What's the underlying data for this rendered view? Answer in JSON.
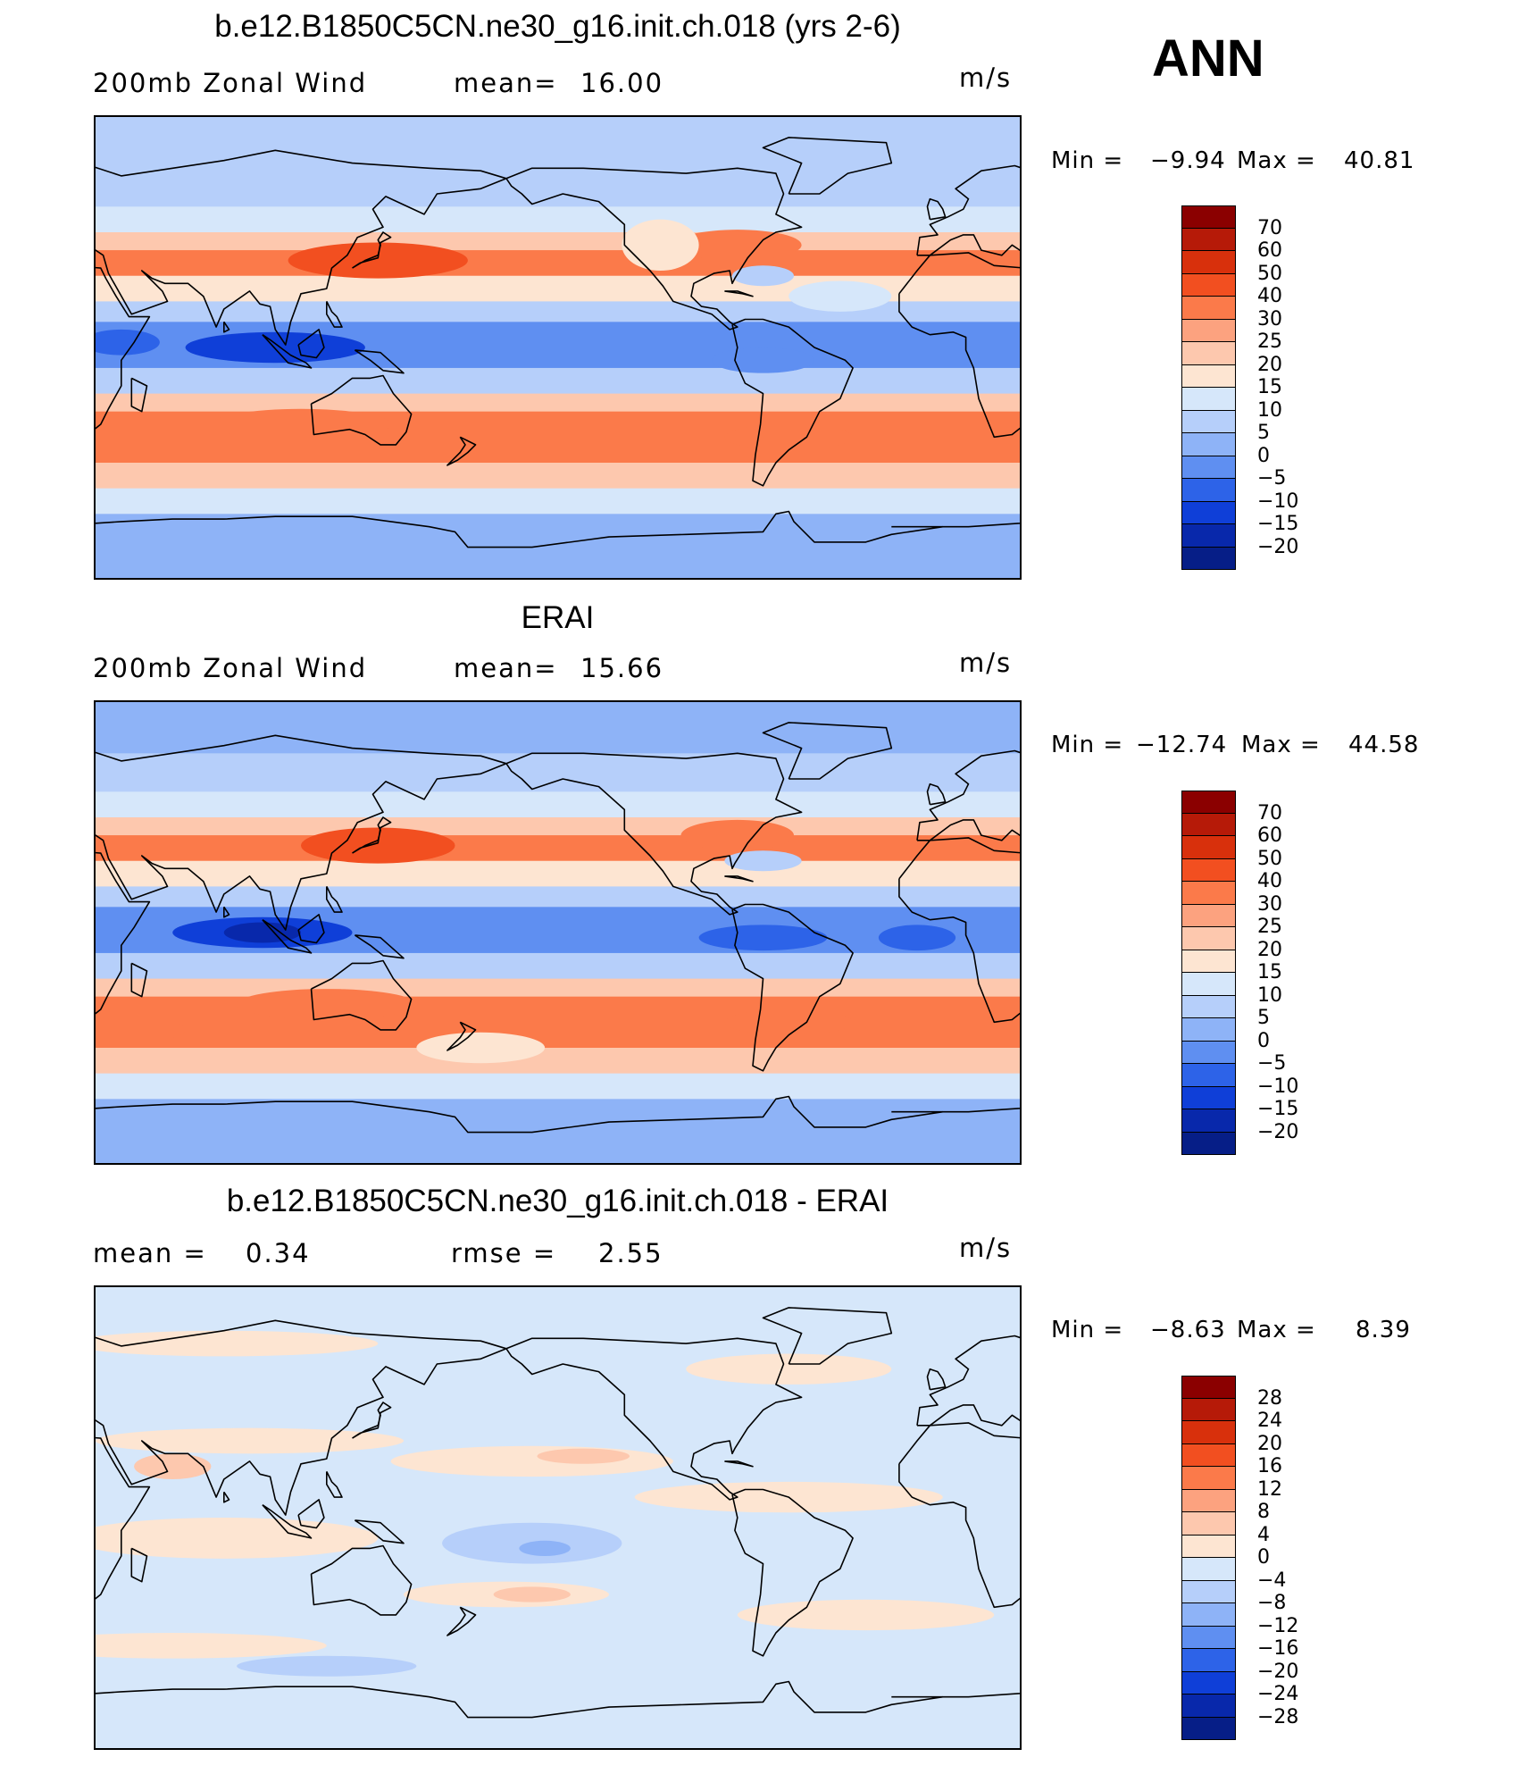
{
  "header": {
    "season": "ANN"
  },
  "panels": [
    {
      "title": "b.e12.B1850C5CN.ne30_g16.init.ch.018 (yrs 2-6)",
      "left_label": "200mb Zonal Wind",
      "stat_label": "mean=",
      "stat_value": "16.00",
      "stat2_label": "",
      "stat2_value": "",
      "units": "m/s",
      "min_label": "Min =",
      "min_value": "−9.94",
      "max_label": "Max =",
      "max_value": "40.81",
      "colorbar": {
        "labels": [
          "70",
          "60",
          "50",
          "40",
          "30",
          "25",
          "20",
          "15",
          "10",
          "5",
          "0",
          "−5",
          "−10",
          "−15",
          "−20"
        ],
        "colors": [
          "#8b0000",
          "#b61a08",
          "#d8300c",
          "#f24f20",
          "#fb7a4a",
          "#fca27f",
          "#fdc8ae",
          "#fde5d2",
          "#d6e7fa",
          "#b6cffa",
          "#8eb3f7",
          "#5f8ff1",
          "#2d63e8",
          "#0f3fd8",
          "#0828ab",
          "#061e87"
        ]
      },
      "map": {
        "bands": [
          {
            "lat_top": 90,
            "lat_bottom": 70,
            "value": 5
          },
          {
            "lat_top": 70,
            "lat_bottom": 55,
            "value": 8
          },
          {
            "lat_top": 55,
            "lat_bottom": 45,
            "value": 13
          },
          {
            "lat_top": 45,
            "lat_bottom": 38,
            "value": 22
          },
          {
            "lat_top": 38,
            "lat_bottom": 28,
            "value": 32
          },
          {
            "lat_top": 28,
            "lat_bottom": 18,
            "value": 18
          },
          {
            "lat_top": 18,
            "lat_bottom": 10,
            "value": 8
          },
          {
            "lat_top": 10,
            "lat_bottom": -8,
            "value": -4
          },
          {
            "lat_top": -8,
            "lat_bottom": -18,
            "value": 8
          },
          {
            "lat_top": -18,
            "lat_bottom": -25,
            "value": 22
          },
          {
            "lat_top": -25,
            "lat_bottom": -45,
            "value": 34
          },
          {
            "lat_top": -45,
            "lat_bottom": -55,
            "value": 22
          },
          {
            "lat_top": -55,
            "lat_bottom": -65,
            "value": 12
          },
          {
            "lat_top": -65,
            "lat_bottom": -90,
            "value": 3
          }
        ],
        "features": [
          {
            "lon": 140,
            "lat": 34,
            "rx": 35,
            "ry": 7,
            "value": 45
          },
          {
            "lon": 100,
            "lat": 0,
            "rx": 35,
            "ry": 6,
            "value": -12
          },
          {
            "lon": 40,
            "lat": 2,
            "rx": 15,
            "ry": 5,
            "value": -8
          },
          {
            "lon": 280,
            "lat": 40,
            "rx": 25,
            "ry": 6,
            "value": 35
          },
          {
            "lon": 250,
            "lat": 40,
            "rx": 15,
            "ry": 10,
            "value": 17
          },
          {
            "lon": 290,
            "lat": 28,
            "rx": 12,
            "ry": 4,
            "value": 9
          },
          {
            "lon": 320,
            "lat": 20,
            "rx": 20,
            "ry": 6,
            "value": 12
          },
          {
            "lon": 290,
            "lat": -5,
            "rx": 20,
            "ry": 5,
            "value": -2
          },
          {
            "lon": 110,
            "lat": -30,
            "rx": 35,
            "ry": 6,
            "value": 38
          },
          {
            "lon": 300,
            "lat": -35,
            "rx": 25,
            "ry": 5,
            "value": 38
          }
        ]
      }
    },
    {
      "title": "ERAI",
      "left_label": "200mb Zonal Wind",
      "stat_label": "mean=",
      "stat_value": "15.66",
      "stat2_label": "",
      "stat2_value": "",
      "units": "m/s",
      "min_label": "Min =",
      "min_value": "−12.74",
      "max_label": "Max =",
      "max_value": "44.58",
      "colorbar": {
        "labels": [
          "70",
          "60",
          "50",
          "40",
          "30",
          "25",
          "20",
          "15",
          "10",
          "5",
          "0",
          "−5",
          "−10",
          "−15",
          "−20"
        ],
        "colors": [
          "#8b0000",
          "#b61a08",
          "#d8300c",
          "#f24f20",
          "#fb7a4a",
          "#fca27f",
          "#fdc8ae",
          "#fde5d2",
          "#d6e7fa",
          "#b6cffa",
          "#8eb3f7",
          "#5f8ff1",
          "#2d63e8",
          "#0f3fd8",
          "#0828ab",
          "#061e87"
        ]
      },
      "map": {
        "bands": [
          {
            "lat_top": 90,
            "lat_bottom": 70,
            "value": 4
          },
          {
            "lat_top": 70,
            "lat_bottom": 55,
            "value": 8
          },
          {
            "lat_top": 55,
            "lat_bottom": 45,
            "value": 13
          },
          {
            "lat_top": 45,
            "lat_bottom": 38,
            "value": 22
          },
          {
            "lat_top": 38,
            "lat_bottom": 28,
            "value": 30
          },
          {
            "lat_top": 28,
            "lat_bottom": 18,
            "value": 17
          },
          {
            "lat_top": 18,
            "lat_bottom": 10,
            "value": 6
          },
          {
            "lat_top": 10,
            "lat_bottom": -8,
            "value": -3
          },
          {
            "lat_top": -8,
            "lat_bottom": -18,
            "value": 9
          },
          {
            "lat_top": -18,
            "lat_bottom": -25,
            "value": 22
          },
          {
            "lat_top": -25,
            "lat_bottom": -45,
            "value": 33
          },
          {
            "lat_top": -45,
            "lat_bottom": -55,
            "value": 22
          },
          {
            "lat_top": -55,
            "lat_bottom": -65,
            "value": 11
          },
          {
            "lat_top": -65,
            "lat_bottom": -90,
            "value": 2
          }
        ],
        "features": [
          {
            "lon": 140,
            "lat": 34,
            "rx": 30,
            "ry": 7,
            "value": 48
          },
          {
            "lon": 95,
            "lat": 0,
            "rx": 35,
            "ry": 6,
            "value": -15
          },
          {
            "lon": 95,
            "lat": 0,
            "rx": 15,
            "ry": 4,
            "value": -18
          },
          {
            "lon": 280,
            "lat": 38,
            "rx": 22,
            "ry": 6,
            "value": 35
          },
          {
            "lon": 290,
            "lat": 28,
            "rx": 15,
            "ry": 4,
            "value": 8
          },
          {
            "lon": 290,
            "lat": -2,
            "rx": 25,
            "ry": 5,
            "value": -8
          },
          {
            "lon": 350,
            "lat": -2,
            "rx": 15,
            "ry": 5,
            "value": -8
          },
          {
            "lon": 120,
            "lat": -28,
            "rx": 35,
            "ry": 6,
            "value": 38
          },
          {
            "lon": 30,
            "lat": -38,
            "rx": 35,
            "ry": 6,
            "value": 38
          },
          {
            "lon": 300,
            "lat": -35,
            "rx": 25,
            "ry": 5,
            "value": 38
          },
          {
            "lon": 180,
            "lat": -45,
            "rx": 25,
            "ry": 6,
            "value": 18
          }
        ]
      }
    },
    {
      "title": "b.e12.B1850C5CN.ne30_g16.init.ch.018 - ERAI",
      "left_label": "mean =",
      "stat_label": "",
      "stat_value": "0.34",
      "stat2_label": "rmse =",
      "stat2_value": "2.55",
      "units": "m/s",
      "min_label": "Min =",
      "min_value": "−8.63",
      "max_label": "Max =",
      "max_value": "8.39",
      "colorbar": {
        "labels": [
          "28",
          "24",
          "20",
          "16",
          "12",
          "8",
          "4",
          "0",
          "−4",
          "−8",
          "−12",
          "−16",
          "−20",
          "−24",
          "−28"
        ],
        "colors": [
          "#8b0000",
          "#b61a08",
          "#d8300c",
          "#f24f20",
          "#fb7a4a",
          "#fca27f",
          "#fdc8ae",
          "#fde5d2",
          "#d6e7fa",
          "#b6cffa",
          "#8eb3f7",
          "#5f8ff1",
          "#2d63e8",
          "#0f3fd8",
          "#0828ab",
          "#061e87"
        ]
      },
      "map": {
        "bands": [
          {
            "lat_top": 90,
            "lat_bottom": -90,
            "value": -2
          }
        ],
        "features": [
          {
            "lon": 80,
            "lat": 68,
            "rx": 60,
            "ry": 5,
            "value": 2
          },
          {
            "lon": 300,
            "lat": 58,
            "rx": 40,
            "ry": 6,
            "value": 2
          },
          {
            "lon": 90,
            "lat": 30,
            "rx": 60,
            "ry": 5,
            "value": 2
          },
          {
            "lon": 200,
            "lat": 22,
            "rx": 55,
            "ry": 6,
            "value": 2
          },
          {
            "lon": 220,
            "lat": 24,
            "rx": 18,
            "ry": 3,
            "value": 6
          },
          {
            "lon": 60,
            "lat": 20,
            "rx": 15,
            "ry": 5,
            "value": 6
          },
          {
            "lon": 300,
            "lat": 8,
            "rx": 60,
            "ry": 6,
            "value": 2
          },
          {
            "lon": 80,
            "lat": -8,
            "rx": 60,
            "ry": 8,
            "value": 2
          },
          {
            "lon": 200,
            "lat": -10,
            "rx": 35,
            "ry": 8,
            "value": -5
          },
          {
            "lon": 205,
            "lat": -12,
            "rx": 10,
            "ry": 3,
            "value": -9
          },
          {
            "lon": 190,
            "lat": -30,
            "rx": 40,
            "ry": 5,
            "value": 2
          },
          {
            "lon": 200,
            "lat": -30,
            "rx": 15,
            "ry": 3,
            "value": 6
          },
          {
            "lon": 330,
            "lat": -38,
            "rx": 50,
            "ry": 6,
            "value": 2
          },
          {
            "lon": 60,
            "lat": -50,
            "rx": 60,
            "ry": 5,
            "value": 2
          },
          {
            "lon": 120,
            "lat": -58,
            "rx": 35,
            "ry": 4,
            "value": -5
          }
        ]
      }
    }
  ]
}
